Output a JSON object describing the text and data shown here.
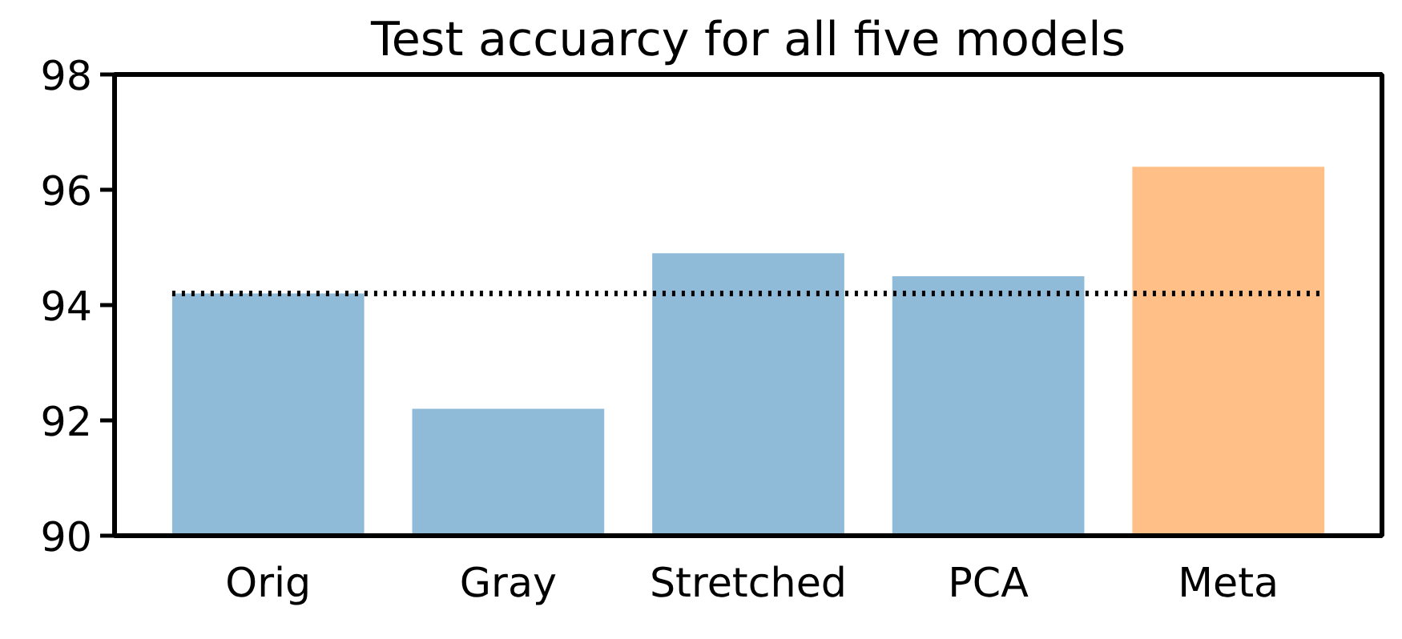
{
  "chart_data": {
    "type": "bar",
    "title": "Test accuarcy for all five models",
    "categories": [
      "Orig",
      "Gray",
      "Stretched",
      "PCA",
      "Meta"
    ],
    "values": [
      94.2,
      92.2,
      94.9,
      94.5,
      96.4
    ],
    "colors": [
      "#8fbbd9",
      "#8fbbd9",
      "#8fbbd9",
      "#8fbbd9",
      "#ffbf86"
    ],
    "ylim": [
      90,
      98
    ],
    "yticks": [
      90,
      92,
      94,
      96,
      98
    ],
    "grid": false,
    "ref_lines": [
      {
        "axis": "y",
        "value": 94.2,
        "color": "#000000",
        "line_style": "dotted"
      }
    ]
  }
}
